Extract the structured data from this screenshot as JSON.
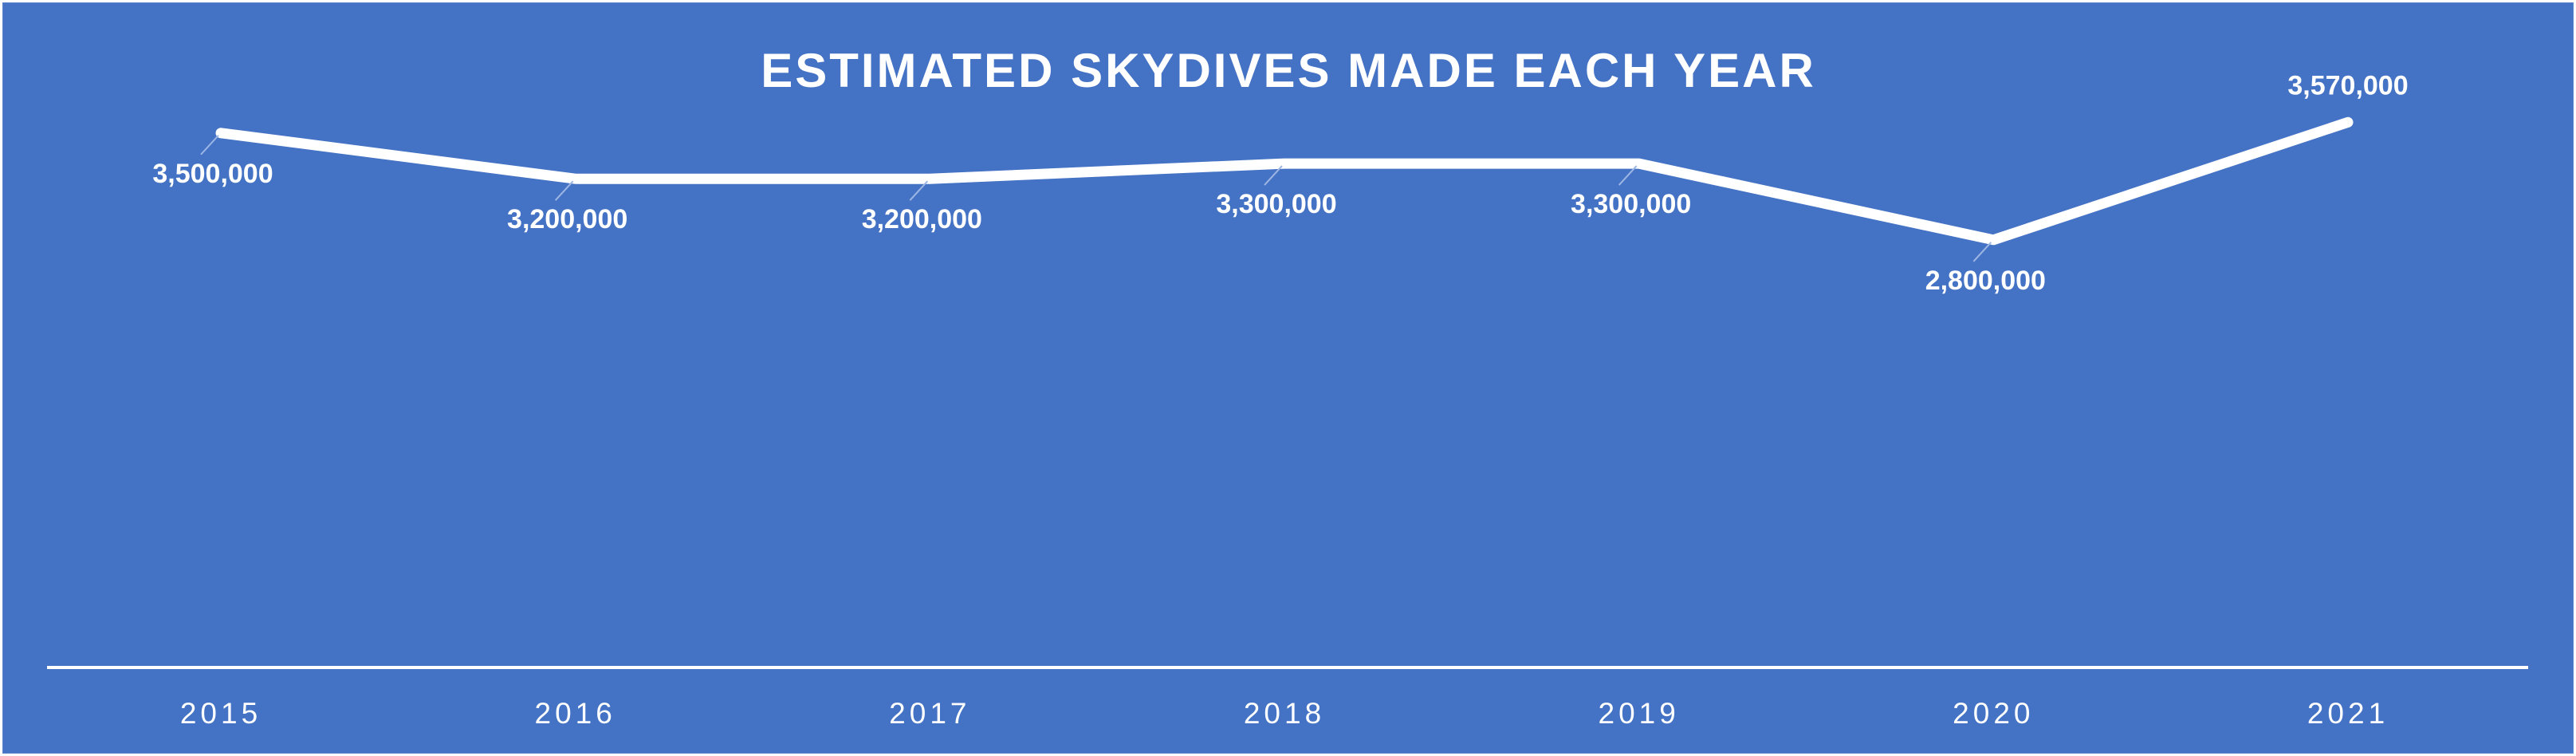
{
  "chart_data": {
    "type": "line",
    "title": "ESTIMATED SKYDIVES MADE EACH YEAR",
    "xlabel": "",
    "ylabel": "",
    "categories": [
      "2015",
      "2016",
      "2017",
      "2018",
      "2019",
      "2020",
      "2021"
    ],
    "series": [
      {
        "values": [
          3500000,
          3200000,
          3200000,
          3300000,
          3300000,
          2800000,
          3570000
        ],
        "data_labels": [
          "3,500,000",
          "3,200,000",
          "3,200,000",
          "3,300,000",
          "3,300,000",
          "2,800,000",
          "3,570,000"
        ]
      }
    ],
    "ylim": [
      0,
      4000000
    ],
    "grid": false,
    "legend": "none",
    "drop_lines": true
  },
  "colors": {
    "background": "#4472C4",
    "line": "#FFFFFF",
    "text": "#FFFFFF"
  }
}
